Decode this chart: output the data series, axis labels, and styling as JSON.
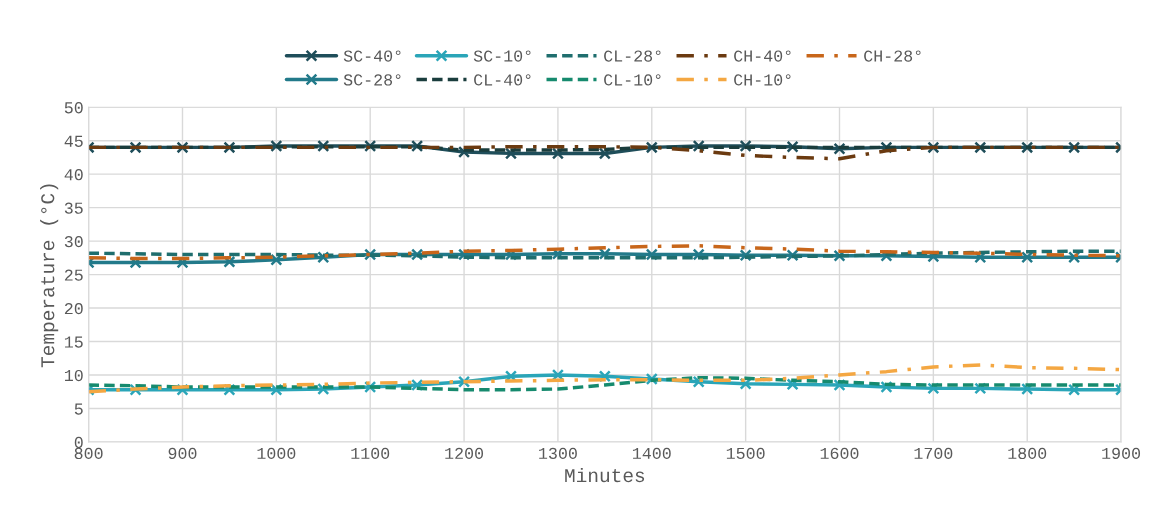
{
  "chart_data": {
    "type": "line",
    "xlabel": "Minutes",
    "ylabel": "Temperature (°C)",
    "x": [
      800,
      850,
      900,
      950,
      1000,
      1050,
      1100,
      1150,
      1200,
      1250,
      1300,
      1350,
      1400,
      1450,
      1500,
      1550,
      1600,
      1650,
      1700,
      1750,
      1800,
      1850,
      1900
    ],
    "xlim": [
      800,
      1900
    ],
    "xticks": [
      800,
      900,
      1000,
      1100,
      1200,
      1300,
      1400,
      1500,
      1600,
      1700,
      1800,
      1900
    ],
    "ylim": [
      0,
      50
    ],
    "yticks": [
      0,
      5,
      10,
      15,
      20,
      25,
      30,
      35,
      40,
      45,
      50
    ],
    "grid": true,
    "legend": "top",
    "series": [
      {
        "name": "SC-40°",
        "color": "#1f4e5a",
        "marker": "cross",
        "line_style": "solid",
        "values": [
          44,
          44,
          44,
          44,
          44.2,
          44.2,
          44.2,
          44.2,
          43.3,
          43.1,
          43.1,
          43.1,
          44,
          44.2,
          44.2,
          44.1,
          43.8,
          44,
          44,
          44,
          44,
          44,
          44
        ]
      },
      {
        "name": "SC-28°",
        "color": "#227a8a",
        "marker": "cross",
        "line_style": "solid",
        "values": [
          26.8,
          26.8,
          26.8,
          26.9,
          27.2,
          27.6,
          28,
          28,
          28,
          28,
          28.1,
          28.1,
          28,
          28,
          27.9,
          27.9,
          27.8,
          27.8,
          27.7,
          27.6,
          27.6,
          27.6,
          27.6
        ]
      },
      {
        "name": "SC-10°",
        "color": "#2aa5b8",
        "marker": "cross",
        "line_style": "solid",
        "values": [
          7.8,
          7.8,
          7.8,
          7.8,
          7.8,
          7.9,
          8.2,
          8.5,
          9,
          9.8,
          10,
          9.8,
          9.4,
          9,
          8.7,
          8.6,
          8.5,
          8.2,
          8,
          8,
          7.9,
          7.8,
          7.8
        ]
      },
      {
        "name": "CL-40°",
        "color": "#1a3d3d",
        "marker": "none",
        "line_style": "dashed",
        "values": [
          44,
          44,
          44,
          44,
          44.1,
          44.1,
          44.1,
          44.1,
          43.6,
          43.6,
          43.6,
          43.7,
          44,
          44,
          44,
          44,
          44,
          44,
          44,
          44,
          44,
          44,
          44
        ]
      },
      {
        "name": "CL-28°",
        "color": "#1f6e6e",
        "marker": "none",
        "line_style": "dashed",
        "values": [
          28.2,
          28.1,
          28,
          28,
          28,
          27.9,
          27.9,
          27.8,
          27.6,
          27.5,
          27.5,
          27.5,
          27.5,
          27.5,
          27.6,
          27.7,
          27.8,
          28,
          28.2,
          28.3,
          28.4,
          28.5,
          28.5
        ]
      },
      {
        "name": "CL-10°",
        "color": "#168a6e",
        "marker": "none",
        "line_style": "dashed",
        "values": [
          8.5,
          8.4,
          8.2,
          8.2,
          8.2,
          8.2,
          8.2,
          8,
          7.8,
          7.8,
          7.9,
          8.5,
          9.2,
          9.6,
          9.5,
          9.2,
          9,
          8.6,
          8.5,
          8.5,
          8.5,
          8.5,
          8.5
        ]
      },
      {
        "name": "CH-40°",
        "color": "#6b3a10",
        "marker": "none",
        "line_style": "dashdot",
        "values": [
          44,
          44,
          44,
          44,
          44,
          44,
          44,
          44,
          44,
          44.1,
          44.1,
          44.1,
          44,
          43.5,
          42.8,
          42.5,
          42.3,
          43.5,
          44,
          44,
          44,
          44,
          44
        ]
      },
      {
        "name": "CH-10°",
        "color": "#f4a742",
        "marker": "none",
        "line_style": "dashdot",
        "values": [
          7.5,
          7.9,
          8.2,
          8.4,
          8.5,
          8.6,
          8.8,
          8.9,
          9,
          9.1,
          9.2,
          9.3,
          9.3,
          9.2,
          9.2,
          9.5,
          10,
          10.5,
          11.2,
          11.5,
          11.1,
          11,
          10.8
        ]
      },
      {
        "name": "CH-28°",
        "color": "#c8661a",
        "marker": "none",
        "line_style": "dashdot",
        "values": [
          27.5,
          27.4,
          27.4,
          27.5,
          27.6,
          27.8,
          28,
          28.2,
          28.5,
          28.6,
          28.8,
          29,
          29.2,
          29.3,
          29,
          28.8,
          28.5,
          28.4,
          28.3,
          28.2,
          28,
          27.9,
          27.8
        ]
      }
    ]
  }
}
